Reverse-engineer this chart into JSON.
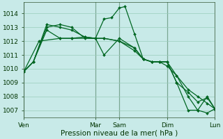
{
  "background_color": "#c8eae8",
  "grid_color": "#99ccbb",
  "line_color": "#006622",
  "xlabel": "Pression niveau de la mer( hPa )",
  "ylim": [
    1006.5,
    1014.8
  ],
  "xlim": [
    0,
    1
  ],
  "yticks": [
    1007,
    1008,
    1009,
    1010,
    1011,
    1012,
    1013,
    1014
  ],
  "day_labels": [
    "Ven",
    "Mar",
    "Sam",
    "Dim",
    "Lun"
  ],
  "day_positions": [
    0.0,
    0.375,
    0.5,
    0.75,
    1.0
  ],
  "vline_color": "#335533",
  "lines": [
    {
      "x": [
        0.0,
        0.05,
        0.12,
        0.19,
        0.25,
        0.32,
        0.375,
        0.42,
        0.46,
        0.5,
        0.53,
        0.58,
        0.625,
        0.67,
        0.71,
        0.75,
        0.8,
        0.86,
        0.91,
        0.96,
        1.0
      ],
      "y": [
        1009.8,
        1010.5,
        1013.2,
        1013.0,
        1012.8,
        1012.3,
        1012.2,
        1013.6,
        1013.7,
        1014.4,
        1014.5,
        1012.5,
        1010.7,
        1010.5,
        1010.5,
        1010.5,
        1009.5,
        1008.0,
        1007.0,
        1006.8,
        1007.1
      ]
    },
    {
      "x": [
        0.0,
        0.05,
        0.12,
        0.19,
        0.25,
        0.32,
        0.375,
        0.42,
        0.5,
        0.58,
        0.625,
        0.67,
        0.71,
        0.75,
        0.8,
        0.86,
        0.91,
        0.96,
        1.0
      ],
      "y": [
        1009.8,
        1010.5,
        1013.0,
        1013.2,
        1013.0,
        1012.2,
        1012.2,
        1011.0,
        1012.2,
        1011.5,
        1010.7,
        1010.5,
        1010.5,
        1010.5,
        1009.0,
        1007.0,
        1007.0,
        1008.0,
        1007.1
      ]
    },
    {
      "x": [
        0.0,
        0.05,
        0.12,
        0.19,
        0.25,
        0.32,
        0.375,
        0.42,
        0.5,
        0.58,
        0.625,
        0.67,
        0.71,
        0.75,
        0.8,
        0.86,
        0.91,
        0.96,
        1.0
      ],
      "y": [
        1009.8,
        1010.5,
        1012.8,
        1012.2,
        1012.2,
        1012.3,
        1012.2,
        1012.2,
        1012.0,
        1011.3,
        1010.7,
        1010.5,
        1010.5,
        1010.2,
        1009.5,
        1008.5,
        1008.0,
        1007.5,
        1007.1
      ]
    },
    {
      "x": [
        0.0,
        0.08,
        0.19,
        0.25,
        0.375,
        0.42,
        0.5,
        0.58,
        0.625,
        0.67,
        0.71,
        0.75,
        0.8,
        0.86,
        0.91,
        0.96,
        1.0
      ],
      "y": [
        1009.8,
        1012.0,
        1012.2,
        1012.2,
        1012.2,
        1012.2,
        1012.0,
        1011.5,
        1010.7,
        1010.5,
        1010.5,
        1010.5,
        1009.0,
        1008.3,
        1007.6,
        1007.9,
        1007.1
      ]
    }
  ],
  "marker": "D",
  "marker_size": 2.0,
  "line_width": 0.9,
  "tick_labelsize": 6.5,
  "xlabel_fontsize": 7.5
}
